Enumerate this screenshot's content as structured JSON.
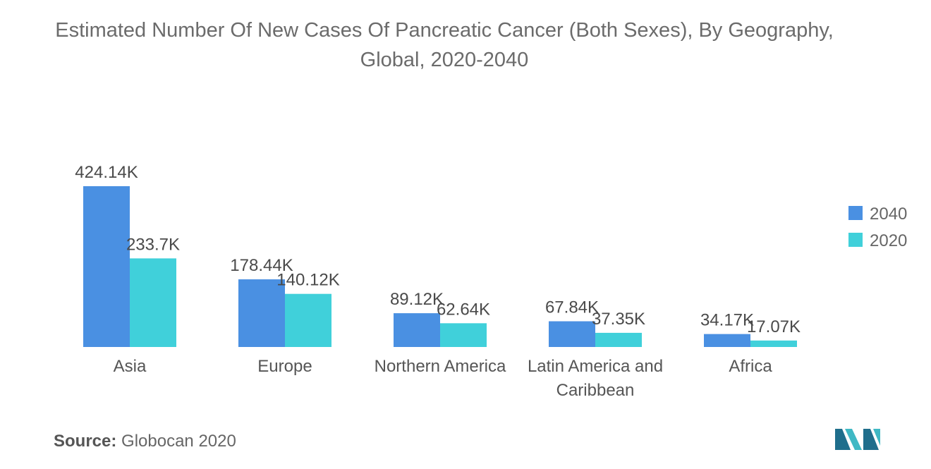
{
  "title": "Estimated Number Of New Cases Of Pancreatic Cancer (Both Sexes), By Geography, Global, 2020-2040",
  "source_label": "Source:",
  "source_value": "Globocan 2020",
  "colors": {
    "2040": "#4a90e2",
    "2020": "#40d0da"
  },
  "chart_data": {
    "type": "bar",
    "title": "Estimated Number Of New Cases Of Pancreatic Cancer (Both Sexes), By Geography, Global, 2020-2040",
    "categories": [
      [
        "Asia"
      ],
      [
        "Europe"
      ],
      [
        "Northern America"
      ],
      [
        "Latin America and",
        "Caribbean"
      ],
      [
        "Africa"
      ]
    ],
    "series": [
      {
        "name": "2040",
        "values": [
          424.14,
          178.44,
          89.12,
          67.84,
          34.17
        ],
        "labels": [
          "424.14K",
          "178.44K",
          "89.12K",
          "67.84K",
          "34.17K"
        ]
      },
      {
        "name": "2020",
        "values": [
          233.7,
          140.12,
          62.64,
          37.35,
          17.07
        ],
        "labels": [
          "233.7K",
          "140.12K",
          "62.64K",
          "37.35K",
          "17.07K"
        ]
      }
    ],
    "unit": "K",
    "ylim": [
      0,
      424.14
    ],
    "grid": false,
    "legend_position": "right"
  }
}
